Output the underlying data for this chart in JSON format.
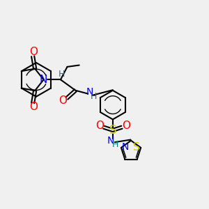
{
  "background_color": "#f0f0f0",
  "bond_color": "#000000",
  "bond_width": 1.5,
  "atom_colors": {
    "C": "#000000",
    "N": "#0000ff",
    "O": "#ff0000",
    "S": "#cccc00",
    "H": "#008080"
  },
  "font_size": 10,
  "fig_size": [
    3.0,
    3.0
  ],
  "dpi": 100
}
